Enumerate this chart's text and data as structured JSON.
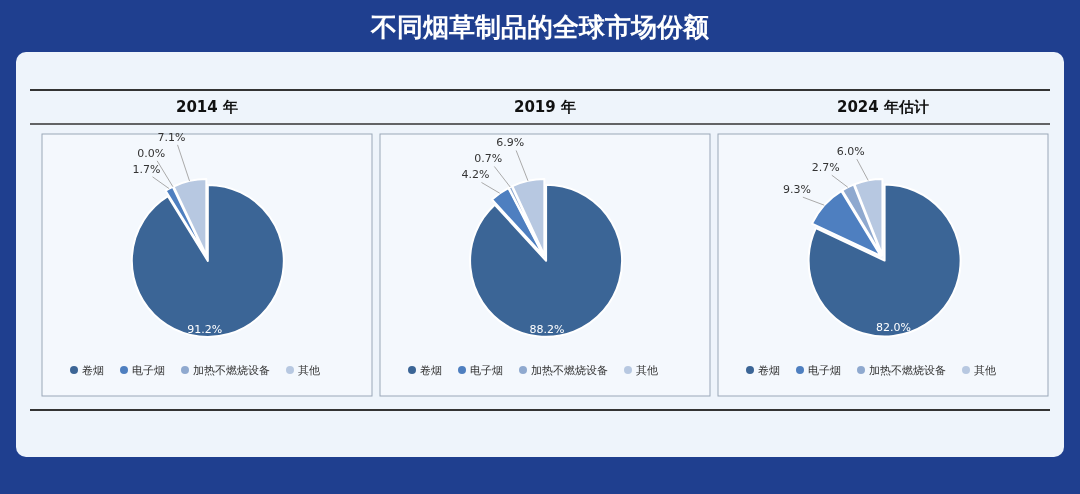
{
  "chart_data": [
    {
      "type": "other",
      "title": "不同烟草制品的全球市场份额"
    },
    {
      "type": "pie",
      "subtitle": "2014 年",
      "categories": [
        "卷烟",
        "电子烟",
        "加热不燃烧设备",
        "其他"
      ],
      "values": [
        91.2,
        1.7,
        0.0,
        7.1
      ],
      "value_labels": [
        "91.2%",
        "1.7%",
        "0.0%",
        "7.1%"
      ],
      "colors": [
        "#3b6596",
        "#4e7fc0",
        "#8fa9cf",
        "#b7c8e1"
      ],
      "legend": "bottom"
    },
    {
      "type": "pie",
      "subtitle": "2019 年",
      "categories": [
        "卷烟",
        "电子烟",
        "加热不燃烧设备",
        "其他"
      ],
      "values": [
        88.2,
        4.2,
        0.7,
        6.9
      ],
      "value_labels": [
        "88.2%",
        "4.2%",
        "0.7%",
        "6.9%"
      ],
      "colors": [
        "#3b6596",
        "#4e7fc0",
        "#8fa9cf",
        "#b7c8e1"
      ],
      "legend": "bottom"
    },
    {
      "type": "pie",
      "subtitle": "2024 年估计",
      "categories": [
        "卷烟",
        "电子烟",
        "加热不燃烧设备",
        "其他"
      ],
      "values": [
        82.0,
        9.3,
        2.7,
        6.0
      ],
      "value_labels": [
        "82.0%",
        "9.3%",
        "2.7%",
        "6.0%"
      ],
      "colors": [
        "#3b6596",
        "#4e7fc0",
        "#8fa9cf",
        "#b7c8e1"
      ],
      "legend": "bottom"
    }
  ]
}
